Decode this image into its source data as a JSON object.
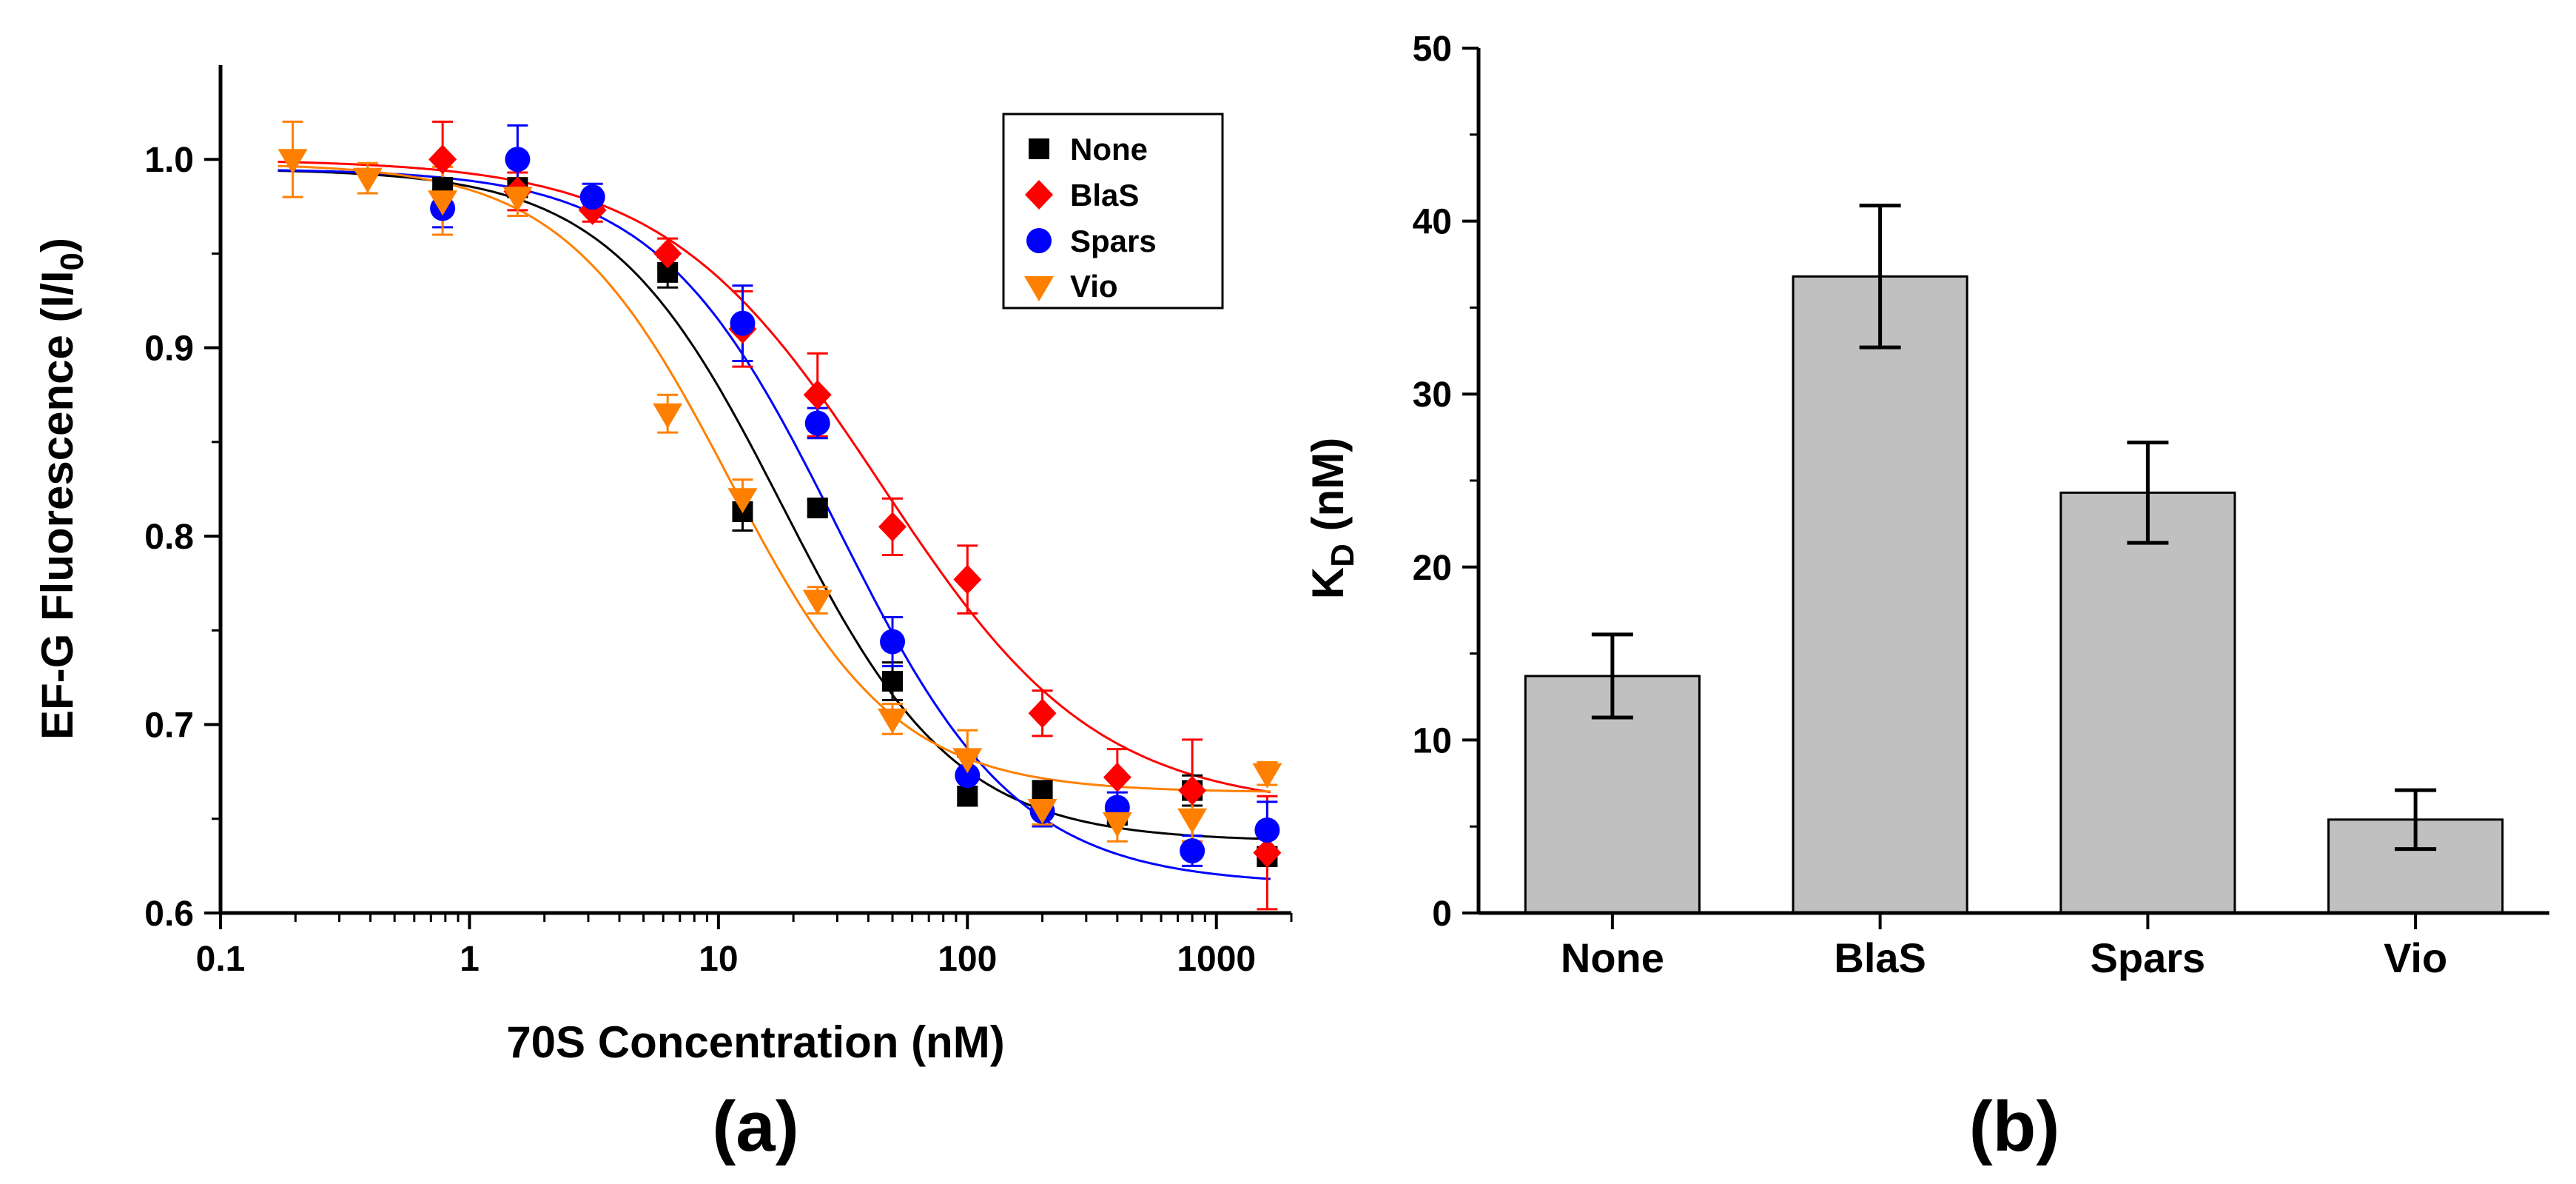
{
  "colors": {
    "None": "#000000",
    "BlaS": "#ff0000",
    "Spars": "#0000ff",
    "Vio": "#ff8000",
    "bar_fill": "#c0c0c0"
  },
  "chart_data": [
    {
      "panel_label": "(a)",
      "type": "scatter",
      "xscale": "log",
      "xlabel": "70S Concentration (nM)",
      "ylabel_main": "EF-G Fluorescence (I/I",
      "ylabel_sub": "0",
      "ylabel_close": ")",
      "xlim": [
        0.1,
        2000
      ],
      "ylim": [
        0.6,
        1.05
      ],
      "xticks": [
        {
          "value": 0.1,
          "label": "0.1"
        },
        {
          "value": 1,
          "label": "1"
        },
        {
          "value": 10,
          "label": "10"
        },
        {
          "value": 100,
          "label": "100"
        },
        {
          "value": 1000,
          "label": "1000"
        }
      ],
      "yticks": [
        {
          "value": 0.6,
          "label": "0.6"
        },
        {
          "value": 0.7,
          "label": "0.7"
        },
        {
          "value": 0.8,
          "label": "0.8"
        },
        {
          "value": 0.9,
          "label": "0.9"
        },
        {
          "value": 1.0,
          "label": "1.0"
        }
      ],
      "legend_position": "top-right",
      "series": [
        {
          "name": "None",
          "marker": "square",
          "colorKey": "None",
          "x": [
            0.78,
            1.56,
            6.25,
            12.5,
            25,
            50,
            100,
            200,
            400,
            800,
            1600
          ],
          "y": [
            0.985,
            0.985,
            0.94,
            0.813,
            0.815,
            0.723,
            0.662,
            0.665,
            0.652,
            0.665,
            0.63
          ],
          "err": [
            0.005,
            0.005,
            0.008,
            0.01,
            0.004,
            0.01,
            0.005,
            0.005,
            0.005,
            0.008,
            0.005
          ],
          "fit": {
            "top": 0.995,
            "bottom": 0.638,
            "ec50": 18.0,
            "hill": 1.25
          }
        },
        {
          "name": "BlaS",
          "marker": "diamond",
          "colorKey": "BlaS",
          "x": [
            0.78,
            1.56,
            3.12,
            6.25,
            12.5,
            25,
            50,
            100,
            200,
            400,
            800,
            1600
          ],
          "y": [
            1.0,
            0.983,
            0.973,
            0.95,
            0.91,
            0.875,
            0.805,
            0.777,
            0.706,
            0.672,
            0.665,
            0.632
          ],
          "err": [
            0.02,
            0.01,
            0.006,
            0.008,
            0.02,
            0.022,
            0.015,
            0.018,
            0.012,
            0.015,
            0.027,
            0.03
          ],
          "fit": {
            "top": 1.0,
            "bottom": 0.655,
            "ec50": 45.0,
            "hill": 1.0
          }
        },
        {
          "name": "Spars",
          "marker": "circle",
          "colorKey": "Spars",
          "x": [
            0.78,
            1.56,
            3.12,
            12.5,
            25,
            50,
            100,
            200,
            400,
            800,
            1600
          ],
          "y": [
            0.974,
            1.0,
            0.98,
            0.913,
            0.86,
            0.744,
            0.673,
            0.654,
            0.656,
            0.633,
            0.644
          ],
          "err": [
            0.01,
            0.018,
            0.007,
            0.02,
            0.008,
            0.013,
            0.01,
            0.008,
            0.008,
            0.008,
            0.015
          ],
          "fit": {
            "top": 0.995,
            "bottom": 0.615,
            "ec50": 30.0,
            "hill": 1.2
          }
        },
        {
          "name": "Vio",
          "marker": "triangle-down",
          "colorKey": "Vio",
          "x": [
            0.195,
            0.39,
            0.78,
            1.56,
            6.25,
            12.5,
            25,
            50,
            100,
            200,
            400,
            800,
            1600
          ],
          "y": [
            1.0,
            0.99,
            0.978,
            0.98,
            0.865,
            0.82,
            0.766,
            0.703,
            0.682,
            0.655,
            0.648,
            0.65,
            0.674
          ],
          "err": [
            0.02,
            0.008,
            0.018,
            0.01,
            0.01,
            0.01,
            0.007,
            0.008,
            0.015,
            0.008,
            0.01,
            0.012,
            0.006
          ],
          "fit": {
            "top": 0.998,
            "bottom": 0.664,
            "ec50": 11.0,
            "hill": 1.3
          }
        }
      ]
    },
    {
      "panel_label": "(b)",
      "type": "bar",
      "ylabel_main": "K",
      "ylabel_sub": "D",
      "ylabel_rest": " (nM)",
      "ylim": [
        0,
        50
      ],
      "yticks": [
        {
          "value": 0,
          "label": "0"
        },
        {
          "value": 10,
          "label": "10"
        },
        {
          "value": 20,
          "label": "20"
        },
        {
          "value": 30,
          "label": "30"
        },
        {
          "value": 40,
          "label": "40"
        },
        {
          "value": 50,
          "label": "50"
        }
      ],
      "categories": [
        "None",
        "BlaS",
        "Spars",
        "Vio"
      ],
      "values": [
        13.7,
        36.8,
        24.3,
        5.4
      ],
      "errors": [
        2.4,
        4.1,
        2.9,
        1.7
      ]
    }
  ]
}
